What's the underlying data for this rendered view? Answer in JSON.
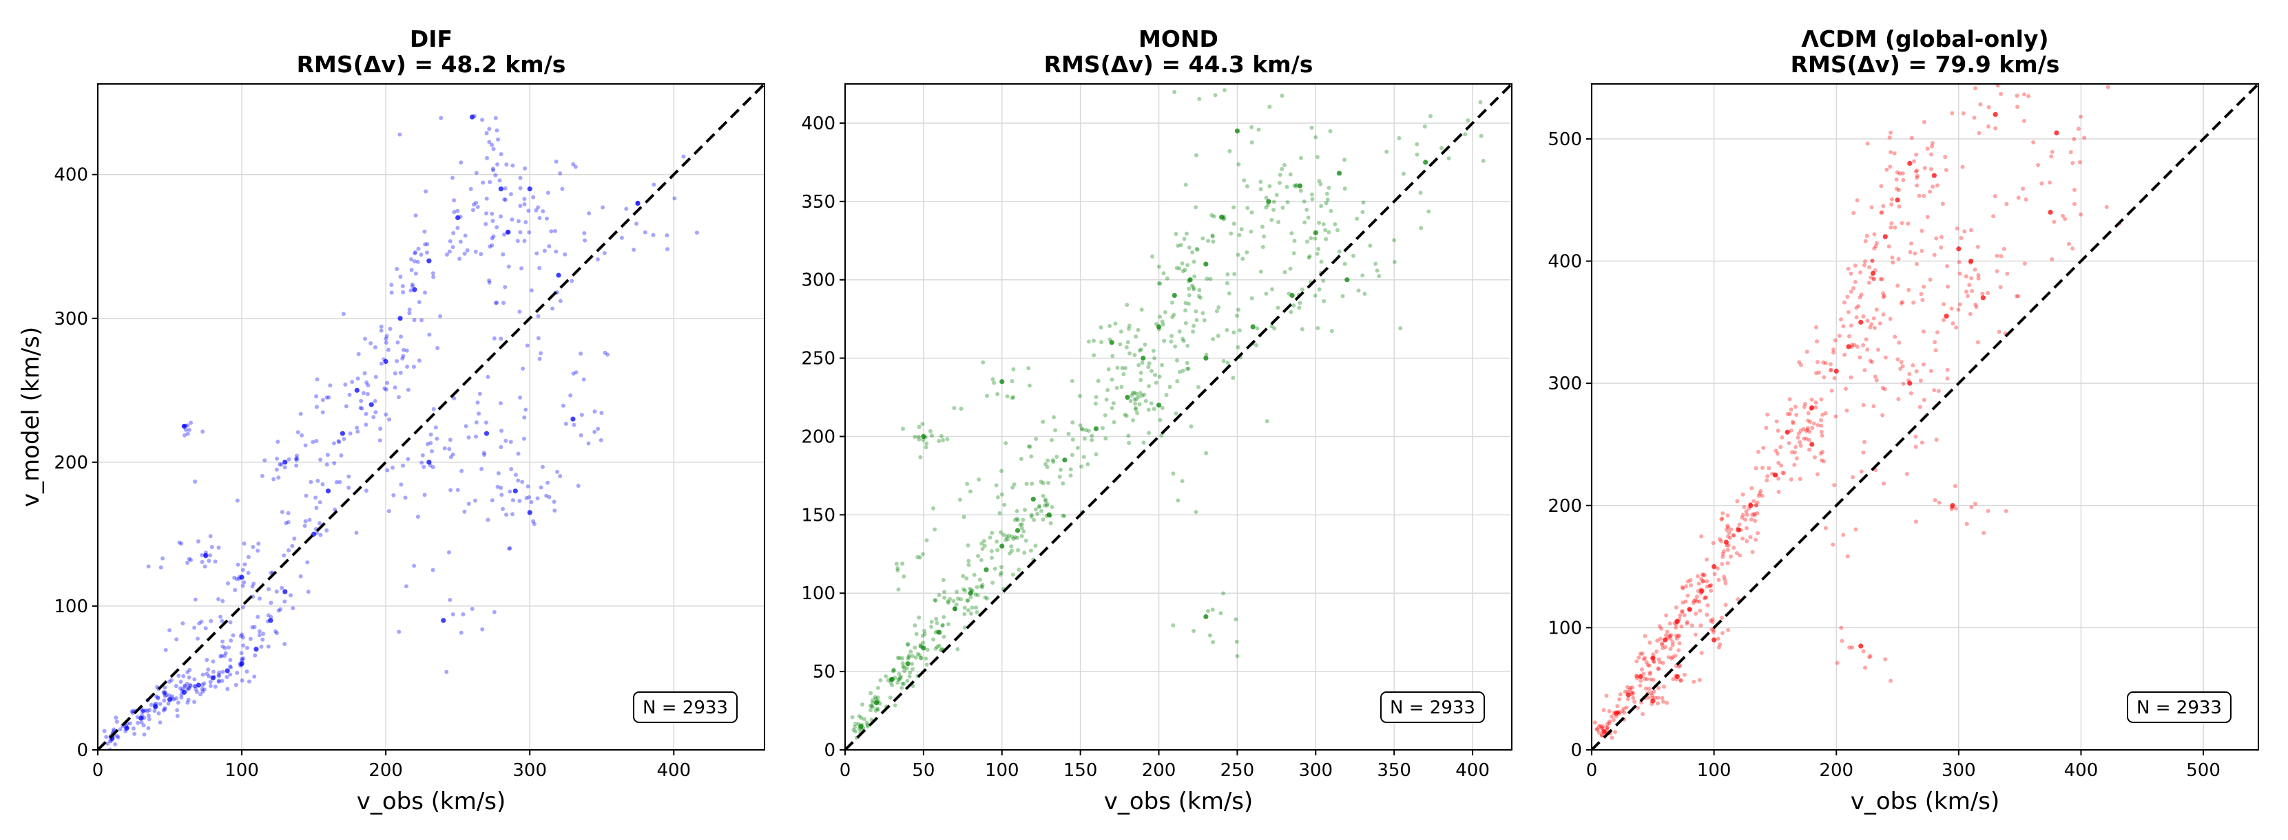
{
  "chart_data": [
    {
      "id": "dif",
      "type": "scatter",
      "title": "DIF",
      "subtitle": "RMS(Δv) = 48.2 km/s",
      "xlabel": "v_obs (km/s)",
      "ylabel": "v_model (km/s)",
      "xlim": [
        0,
        463
      ],
      "ylim": [
        0,
        463
      ],
      "xticks": [
        0,
        100,
        200,
        300,
        400
      ],
      "yticks": [
        0,
        100,
        200,
        300,
        400
      ],
      "grid": true,
      "color": "#0000ff",
      "reference_line": "y = x (dashed black)",
      "annotation": "N = 2933",
      "annotation_position": "bottom-right",
      "n_points": 2933,
      "cluster_samples": [
        [
          10,
          8
        ],
        [
          20,
          15
        ],
        [
          30,
          22
        ],
        [
          40,
          30
        ],
        [
          50,
          35
        ],
        [
          60,
          40
        ],
        [
          70,
          45
        ],
        [
          80,
          50
        ],
        [
          90,
          55
        ],
        [
          100,
          60
        ],
        [
          110,
          70
        ],
        [
          120,
          90
        ],
        [
          130,
          110
        ],
        [
          75,
          135
        ],
        [
          100,
          120
        ],
        [
          150,
          150
        ],
        [
          160,
          180
        ],
        [
          170,
          220
        ],
        [
          180,
          250
        ],
        [
          200,
          270
        ],
        [
          210,
          300
        ],
        [
          220,
          320
        ],
        [
          230,
          340
        ],
        [
          250,
          370
        ],
        [
          260,
          440
        ],
        [
          280,
          390
        ],
        [
          300,
          390
        ],
        [
          285,
          360
        ],
        [
          320,
          330
        ],
        [
          270,
          220
        ],
        [
          290,
          180
        ],
        [
          300,
          165
        ],
        [
          330,
          230
        ],
        [
          240,
          90
        ],
        [
          375,
          380
        ],
        [
          230,
          200
        ],
        [
          190,
          240
        ],
        [
          130,
          200
        ],
        [
          60,
          225
        ]
      ]
    },
    {
      "id": "mond",
      "type": "scatter",
      "title": "MOND",
      "subtitle": "RMS(Δv) = 44.3 km/s",
      "xlabel": "v_obs (km/s)",
      "ylabel": "",
      "xlim": [
        0,
        425
      ],
      "ylim": [
        0,
        425
      ],
      "xticks": [
        0,
        50,
        100,
        150,
        200,
        250,
        300,
        350,
        400
      ],
      "yticks": [
        0,
        50,
        100,
        150,
        200,
        250,
        300,
        350,
        400
      ],
      "grid": true,
      "color": "#008000",
      "reference_line": "y = x (dashed black)",
      "annotation": "N = 2933",
      "annotation_position": "bottom-right",
      "n_points": 2933,
      "cluster_samples": [
        [
          10,
          15
        ],
        [
          20,
          30
        ],
        [
          30,
          45
        ],
        [
          40,
          55
        ],
        [
          50,
          65
        ],
        [
          60,
          75
        ],
        [
          70,
          90
        ],
        [
          80,
          100
        ],
        [
          90,
          115
        ],
        [
          100,
          130
        ],
        [
          110,
          140
        ],
        [
          120,
          160
        ],
        [
          140,
          185
        ],
        [
          160,
          205
        ],
        [
          180,
          225
        ],
        [
          190,
          250
        ],
        [
          200,
          270
        ],
        [
          210,
          290
        ],
        [
          220,
          300
        ],
        [
          230,
          310
        ],
        [
          240,
          340
        ],
        [
          250,
          395
        ],
        [
          270,
          350
        ],
        [
          290,
          360
        ],
        [
          315,
          368
        ],
        [
          300,
          330
        ],
        [
          320,
          300
        ],
        [
          285,
          290
        ],
        [
          370,
          375
        ],
        [
          230,
          85
        ],
        [
          100,
          235
        ],
        [
          50,
          200
        ],
        [
          230,
          250
        ],
        [
          260,
          270
        ],
        [
          200,
          220
        ],
        [
          170,
          260
        ],
        [
          130,
          150
        ]
      ]
    },
    {
      "id": "lcdm",
      "type": "scatter",
      "title": "ΛCDM (global-only)",
      "subtitle": "RMS(Δv) = 79.9 km/s",
      "xlabel": "v_obs (km/s)",
      "ylabel": "",
      "xlim": [
        0,
        545
      ],
      "ylim": [
        0,
        545
      ],
      "xticks": [
        0,
        100,
        200,
        300,
        400,
        500
      ],
      "yticks": [
        0,
        100,
        200,
        300,
        400,
        500
      ],
      "grid": true,
      "color": "#ff0000",
      "reference_line": "y = x (dashed black)",
      "annotation": "N = 2933",
      "annotation_position": "bottom-right",
      "n_points": 2933,
      "cluster_samples": [
        [
          10,
          15
        ],
        [
          20,
          30
        ],
        [
          30,
          45
        ],
        [
          40,
          60
        ],
        [
          50,
          75
        ],
        [
          60,
          90
        ],
        [
          70,
          105
        ],
        [
          80,
          115
        ],
        [
          90,
          130
        ],
        [
          100,
          150
        ],
        [
          110,
          170
        ],
        [
          120,
          180
        ],
        [
          130,
          200
        ],
        [
          150,
          225
        ],
        [
          160,
          260
        ],
        [
          180,
          280
        ],
        [
          200,
          310
        ],
        [
          210,
          330
        ],
        [
          220,
          350
        ],
        [
          230,
          390
        ],
        [
          240,
          420
        ],
        [
          250,
          450
        ],
        [
          260,
          480
        ],
        [
          280,
          470
        ],
        [
          300,
          410
        ],
        [
          310,
          400
        ],
        [
          320,
          370
        ],
        [
          290,
          355
        ],
        [
          330,
          520
        ],
        [
          380,
          505
        ],
        [
          375,
          440
        ],
        [
          220,
          85
        ],
        [
          295,
          200
        ],
        [
          180,
          250
        ],
        [
          260,
          300
        ],
        [
          70,
          60
        ],
        [
          50,
          40
        ],
        [
          100,
          90
        ]
      ]
    }
  ]
}
